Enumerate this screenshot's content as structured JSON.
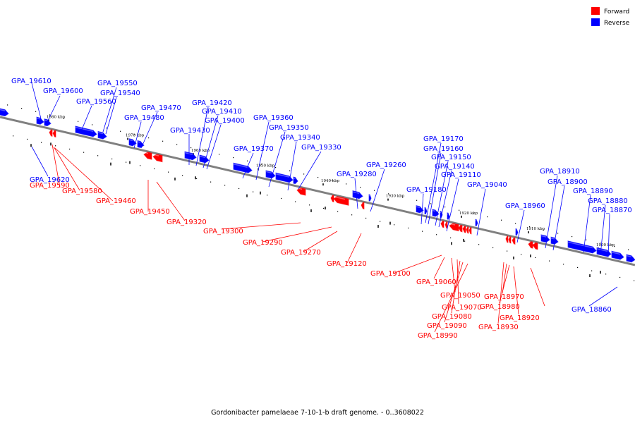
{
  "legend": {
    "items": [
      {
        "label": "Forward",
        "color": "#ff0000"
      },
      {
        "label": "Reverse",
        "color": "#0000ff"
      }
    ]
  },
  "caption": "Gordonibacter pamelaeae 7-10-1-b draft genome. - 0..3608022",
  "colors": {
    "forward": "#ff0000",
    "reverse": "#0000ff",
    "backbone": "#808080"
  },
  "scale_labels": [
    "1980 kbp",
    "1970 kbp",
    "1960 kbp",
    "1950 kbp",
    "1940 kbp",
    "1930 kbp",
    "1920 kbp",
    "1910 kbp",
    "1900 kbp"
  ],
  "reverse_genes": [
    "GPA_19610",
    "GPA_19600",
    "GPA_19620",
    "GPA_19560",
    "GPA_19550",
    "GPA_19540",
    "GPA_19480",
    "GPA_19470",
    "GPA_19430",
    "GPA_19420",
    "GPA_19410",
    "GPA_19400",
    "GPA_19370",
    "GPA_19360",
    "GPA_19350",
    "GPA_19340",
    "GPA_19330",
    "GPA_19280",
    "GPA_19260",
    "GPA_19180",
    "GPA_19170",
    "GPA_19160",
    "GPA_19150",
    "GPA_19140",
    "GPA_19110",
    "GPA_19040",
    "GPA_18960",
    "GPA_18910",
    "GPA_18900",
    "GPA_18890",
    "GPA_18880",
    "GPA_18870",
    "GPA_18860"
  ],
  "forward_genes": [
    "GPA_19590",
    "GPA_19580",
    "GPA_19460",
    "GPA_19450",
    "GPA_19320",
    "GPA_19300",
    "GPA_19290",
    "GPA_19270",
    "GPA_19120",
    "GPA_19100",
    "GPA_19060",
    "GPA_19050",
    "GPA_19070",
    "GPA_19080",
    "GPA_19090",
    "GPA_18990",
    "GPA_18970",
    "GPA_18980",
    "GPA_18930",
    "GPA_18920"
  ]
}
